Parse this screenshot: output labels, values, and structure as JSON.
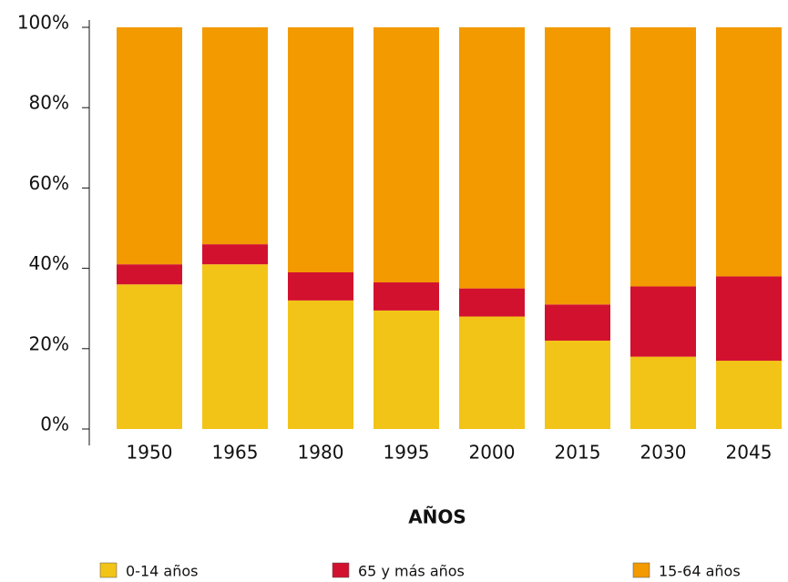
{
  "chart_data": {
    "type": "stacked_bar",
    "x_label": "AÑOS",
    "categories": [
      "1950",
      "1965",
      "1980",
      "1995",
      "2000",
      "2015",
      "2030",
      "2045"
    ],
    "series": [
      {
        "name": "0-14 años",
        "color": "#f2c417",
        "values": [
          36,
          41,
          32,
          29.5,
          28,
          22,
          18,
          17
        ]
      },
      {
        "name": "65 y más años",
        "color": "#d2112f",
        "values": [
          5,
          5,
          7,
          7,
          7,
          9,
          17.5,
          21
        ]
      },
      {
        "name": "15-64 años",
        "color": "#f29a00",
        "values": [
          59,
          54,
          61,
          63.5,
          65,
          69,
          64.5,
          62
        ]
      }
    ],
    "ylim": [
      0,
      100
    ],
    "yticks": [
      {
        "value": 0,
        "label": "0%"
      },
      {
        "value": 20,
        "label": "20%"
      },
      {
        "value": 40,
        "label": "40%"
      },
      {
        "value": 60,
        "label": "60%"
      },
      {
        "value": 80,
        "label": "80%"
      },
      {
        "value": 100,
        "label": "100%"
      }
    ]
  }
}
